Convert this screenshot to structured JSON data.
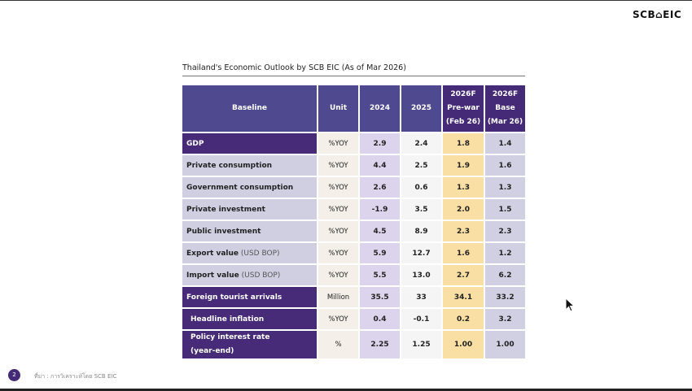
{
  "logo": "SCB⌂EIC",
  "title": "Thailand's Economic Outlook by SCB EIC (As of Mar 2026)",
  "headers": {
    "baseline": "Baseline",
    "unit": "Unit",
    "y2024": "2024",
    "y2025": "2025",
    "prewar": [
      "2026F",
      "Pre-war",
      "(Feb 26)"
    ],
    "base": [
      "2026F",
      "Base",
      "(Mar 26)"
    ]
  },
  "rows": [
    {
      "label": "GDP",
      "note": "",
      "unit": "%YOY",
      "y2024": "2.9",
      "y2025": "2.4",
      "prewar": "1.8",
      "base": "1.4"
    },
    {
      "label": "Private consumption",
      "note": "",
      "unit": "%YOY",
      "y2024": "4.4",
      "y2025": "2.5",
      "prewar": "1.9",
      "base": "1.6"
    },
    {
      "label": "Government consumption",
      "note": "",
      "unit": "%YOY",
      "y2024": "2.6",
      "y2025": "0.6",
      "prewar": "1.3",
      "base": "1.3"
    },
    {
      "label": "Private investment",
      "note": "",
      "unit": "%YOY",
      "y2024": "-1.9",
      "y2025": "3.5",
      "prewar": "2.0",
      "base": "1.5"
    },
    {
      "label": "Public investment",
      "note": "",
      "unit": "%YOY",
      "y2024": "4.5",
      "y2025": "8.9",
      "prewar": "2.3",
      "base": "2.3"
    },
    {
      "label": "Export value",
      "note": "(USD BOP)",
      "unit": "%YOY",
      "y2024": "5.9",
      "y2025": "12.7",
      "prewar": "1.6",
      "base": "1.2"
    },
    {
      "label": "Import value",
      "note": "(USD BOP)",
      "unit": "%YOY",
      "y2024": "5.5",
      "y2025": "13.0",
      "prewar": "2.7",
      "base": "6.2"
    },
    {
      "label": "Foreign tourist arrivals",
      "note": "",
      "unit": "Million",
      "y2024": "35.5",
      "y2025": "33",
      "prewar": "34.1",
      "base": "33.2"
    },
    {
      "label": "Headline inflation",
      "note": "",
      "unit": "%YOY",
      "y2024": "0.4",
      "y2025": "-0.1",
      "prewar": "0.2",
      "base": "3.2"
    },
    {
      "label": "Policy interest rate",
      "note": "(year-end)",
      "unit": "%",
      "y2024": "2.25",
      "y2025": "1.25",
      "prewar": "1.00",
      "base": "1.00"
    }
  ],
  "footer": {
    "page": "2",
    "source": "ที่มา : การวิเคราะห์โดย SCB EIC"
  },
  "colors": {
    "header": "#4f4a8f",
    "header_dark": "#452a77",
    "prewar": "#f9dfa3",
    "y2024": "#dcd3ec"
  }
}
